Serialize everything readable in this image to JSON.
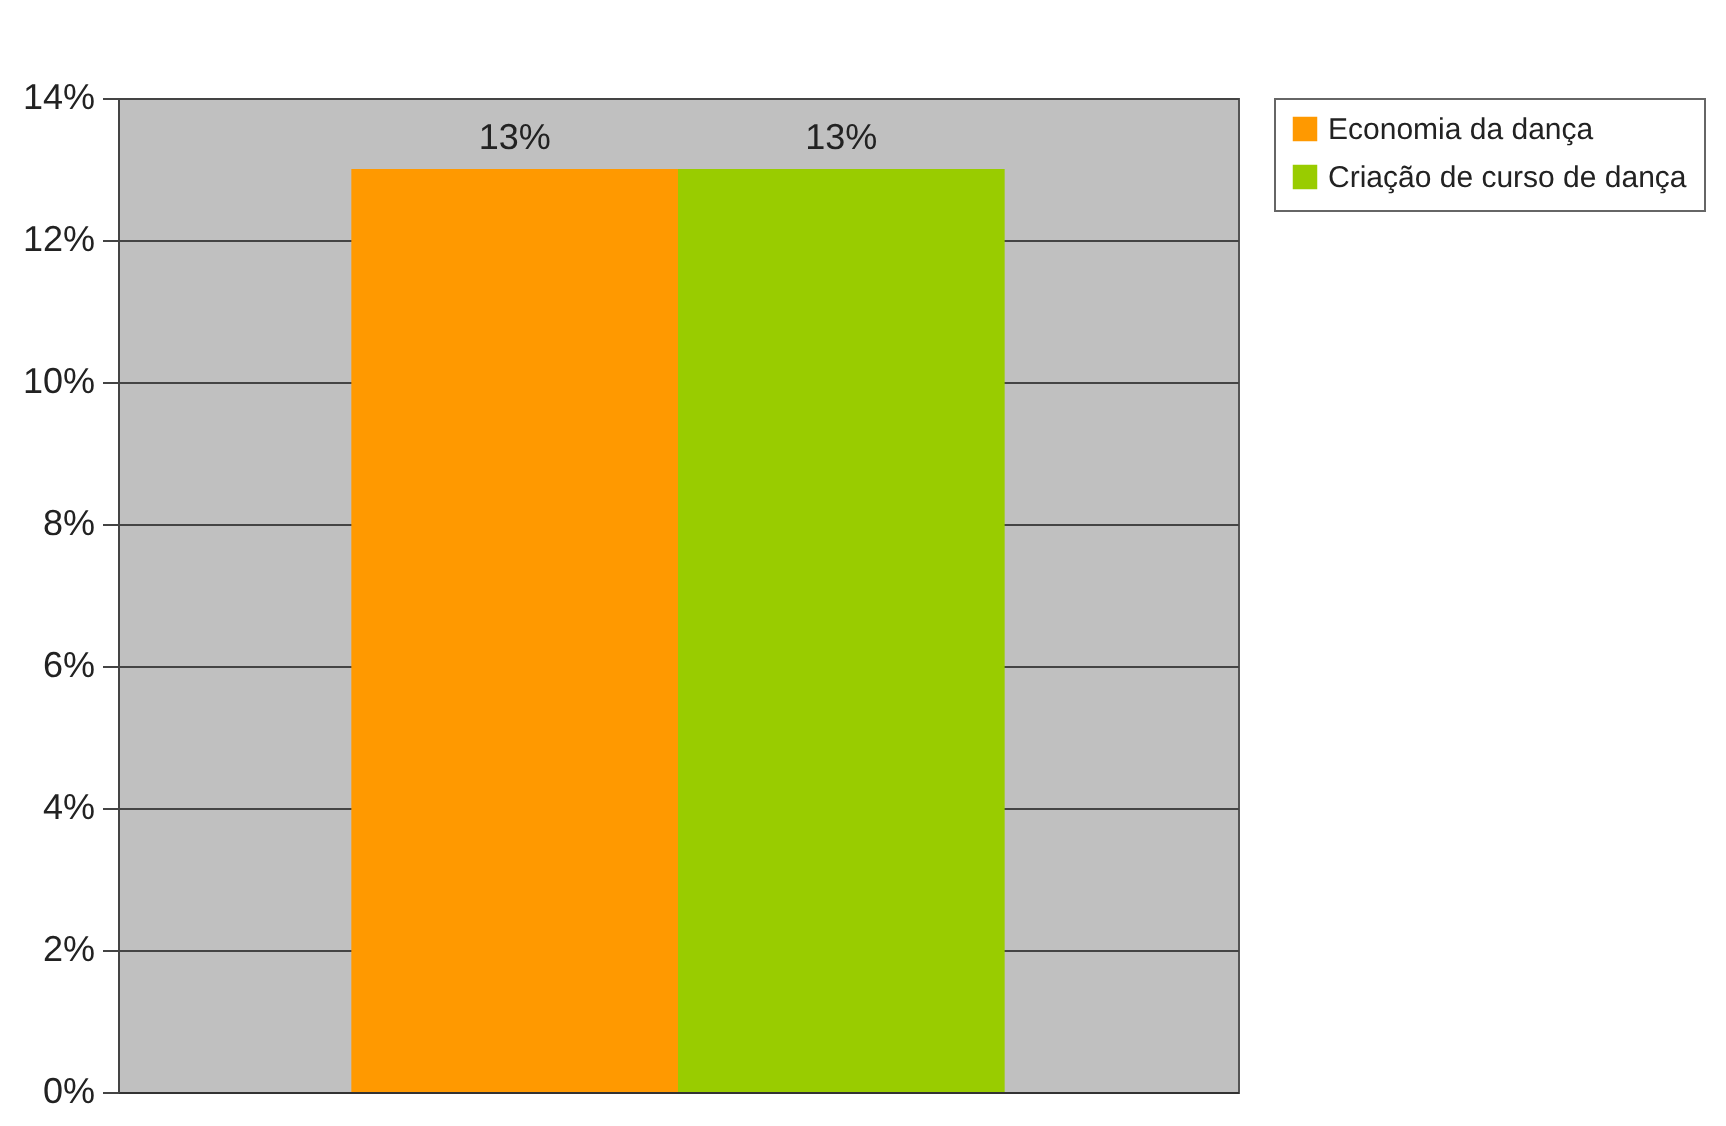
{
  "chart_data": {
    "type": "bar",
    "categories": [
      null
    ],
    "series": [
      {
        "name": "Economia da dança",
        "color": "#ff9900",
        "values": [
          13
        ],
        "value_labels": [
          "13%"
        ]
      },
      {
        "name": "Criação de curso de dança",
        "color": "#99cc00",
        "values": [
          13
        ],
        "value_labels": [
          "13%"
        ]
      }
    ],
    "ylim": [
      0,
      14
    ],
    "yticks": [
      {
        "value": 0,
        "label": "0%"
      },
      {
        "value": 2,
        "label": "2%"
      },
      {
        "value": 4,
        "label": "4%"
      },
      {
        "value": 6,
        "label": "6%"
      },
      {
        "value": 8,
        "label": "8%"
      },
      {
        "value": 10,
        "label": "10%"
      },
      {
        "value": 12,
        "label": "12%"
      },
      {
        "value": 14,
        "label": "14%"
      }
    ],
    "grid": "y",
    "legend": "right"
  }
}
